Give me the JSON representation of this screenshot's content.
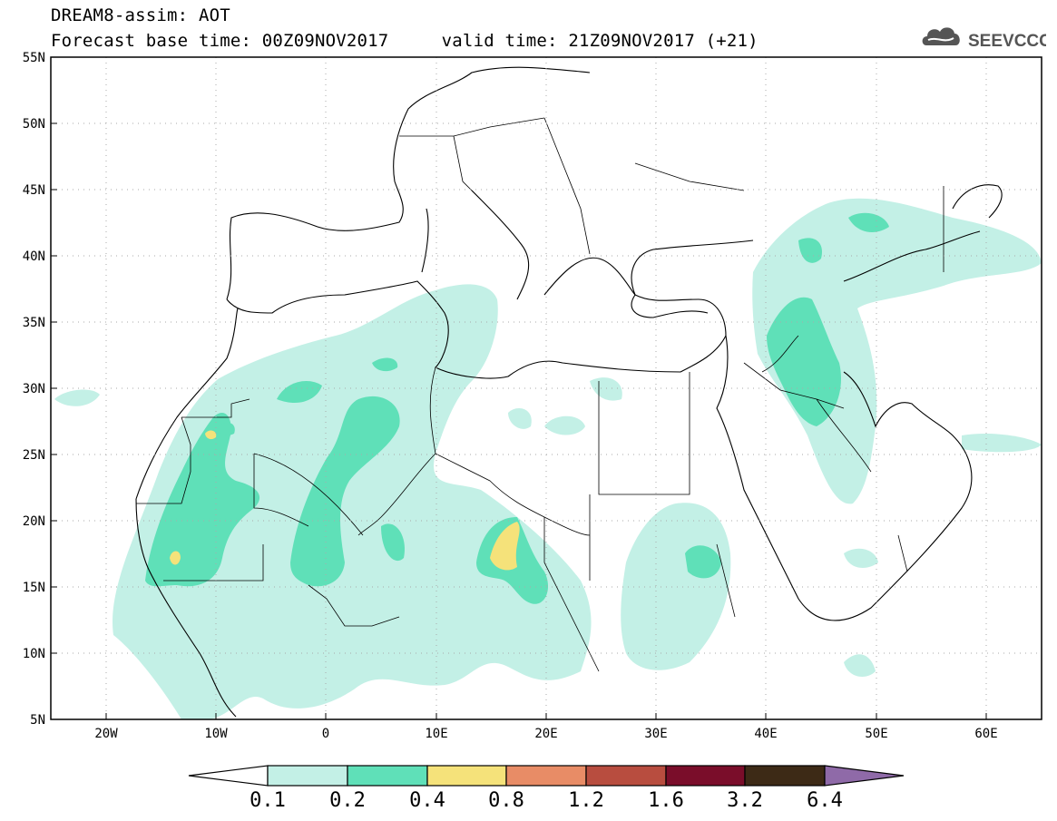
{
  "header": {
    "title_line1": "DREAM8-assim: AOT",
    "forecast_label": "Forecast base time: 00Z09NOV2017",
    "valid_label": "valid time: 21Z09NOV2017 (+21)",
    "logo_text": "SEEVCCC",
    "logo_icon": "cloud-icon"
  },
  "map": {
    "lon_range": [
      -25,
      65
    ],
    "lat_range": [
      5,
      55
    ],
    "lat_labels": [
      "55N",
      "50N",
      "45N",
      "40N",
      "35N",
      "30N",
      "25N",
      "20N",
      "15N",
      "10N",
      "5N"
    ],
    "lon_labels": [
      "20W",
      "10W",
      "0",
      "10E",
      "20E",
      "30E",
      "40E",
      "50E",
      "60E"
    ],
    "grid": "dotted"
  },
  "colorbar": {
    "labels": [
      "0.1",
      "0.2",
      "0.4",
      "0.8",
      "1.2",
      "1.6",
      "3.2",
      "6.4"
    ],
    "colors": [
      "#ffffff",
      "#c3f0e6",
      "#5fe0b8",
      "#f5e27a",
      "#e88c66",
      "#b84d3f",
      "#7a0d2a",
      "#3d2a16",
      "#8f6aa8"
    ]
  }
}
